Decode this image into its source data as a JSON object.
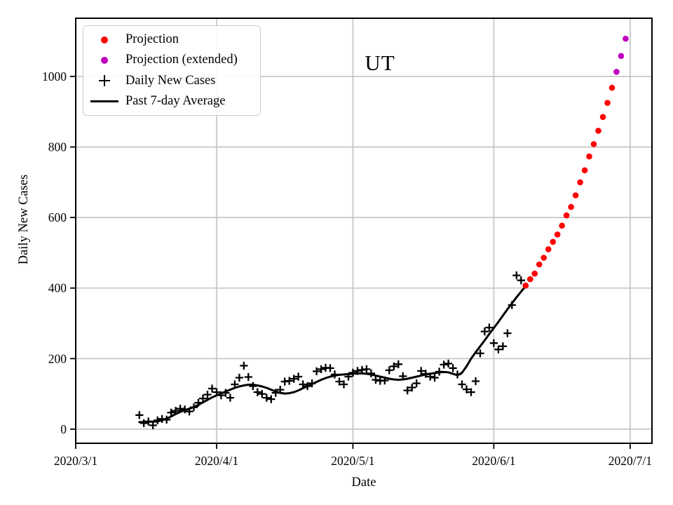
{
  "chart_data": {
    "type": "line",
    "title": "UT",
    "xlabel": "Date",
    "ylabel": "Daily New Cases",
    "grid": true,
    "legend_position": "upper left",
    "colors": {
      "projection": "#ff0000",
      "projection_extended": "#c000c0",
      "data": "#000000",
      "grid": "#c6c6c6",
      "spine": "#000000",
      "background": "#ffffff"
    },
    "xlim_days": [
      0,
      126.8
    ],
    "ylim": [
      -40,
      1165
    ],
    "x_axis": {
      "day0_date": "2020/3/1",
      "tick_days": [
        0,
        31,
        61,
        92,
        122
      ],
      "tick_labels": [
        "2020/3/1",
        "2020/4/1",
        "2020/5/1",
        "2020/6/1",
        "2020/7/1"
      ]
    },
    "y_axis": {
      "ticks": [
        0,
        200,
        400,
        600,
        800,
        1000
      ]
    },
    "series": [
      {
        "name": "Projection",
        "kind": "scatter",
        "marker": "circle",
        "color": "#ff0000",
        "start_day": 99,
        "start_date": "2020/6/8",
        "end_date": "2020/6/27",
        "values": [
          407,
          425,
          441,
          467,
          486,
          510,
          531,
          552,
          577,
          606,
          630,
          663,
          700,
          734,
          773,
          808,
          846,
          885,
          925,
          968
        ]
      },
      {
        "name": "Projection (extended)",
        "kind": "scatter",
        "marker": "circle",
        "color": "#c000c0",
        "start_day": 119,
        "start_date": "2020/6/28",
        "end_date": "2020/6/30",
        "values": [
          1013,
          1058,
          1107
        ]
      },
      {
        "name": "Daily New Cases",
        "kind": "scatter",
        "marker": "plus",
        "color": "#000000",
        "start_day": 14,
        "start_date": "2020/3/15",
        "end_date": "2020/6/7",
        "values": [
          40,
          17,
          22,
          11,
          25,
          29,
          27,
          47,
          52,
          58,
          56,
          50,
          62,
          75,
          87,
          98,
          115,
          105,
          96,
          103,
          89,
          127,
          146,
          180,
          148,
          122,
          105,
          100,
          89,
          85,
          103,
          112,
          135,
          137,
          143,
          149,
          127,
          122,
          130,
          164,
          170,
          174,
          173,
          155,
          135,
          127,
          149,
          160,
          165,
          168,
          170,
          158,
          140,
          137,
          138,
          167,
          178,
          184,
          150,
          110,
          118,
          130,
          165,
          157,
          149,
          146,
          163,
          183,
          186,
          173,
          155,
          127,
          113,
          105,
          136,
          215,
          277,
          288,
          244,
          226,
          235,
          272,
          352,
          436,
          422
        ]
      },
      {
        "name": "Past 7-day Average",
        "kind": "line",
        "marker": "none",
        "color": "#000000",
        "start_day": 14,
        "start_date": "2020/3/15",
        "end_date": "2020/6/8",
        "values": [
          20,
          20,
          21,
          21,
          22,
          25,
          30,
          36,
          43,
          49,
          54,
          58,
          63,
          69,
          76,
          83,
          90,
          96,
          101,
          107,
          112,
          117,
          121,
          124,
          126,
          126,
          124,
          121,
          117,
          112,
          107,
          103,
          101,
          102,
          105,
          110,
          116,
          122,
          128,
          134,
          140,
          145,
          149,
          152,
          154,
          155,
          156,
          157,
          158,
          158,
          157,
          155,
          152,
          149,
          146,
          143,
          141,
          140,
          141,
          143,
          146,
          149,
          152,
          155,
          157,
          159,
          161,
          162,
          161,
          157,
          153,
          160,
          178,
          200,
          218,
          235,
          252,
          270,
          287,
          304,
          322,
          340,
          357,
          374,
          390,
          405
        ]
      }
    ]
  }
}
